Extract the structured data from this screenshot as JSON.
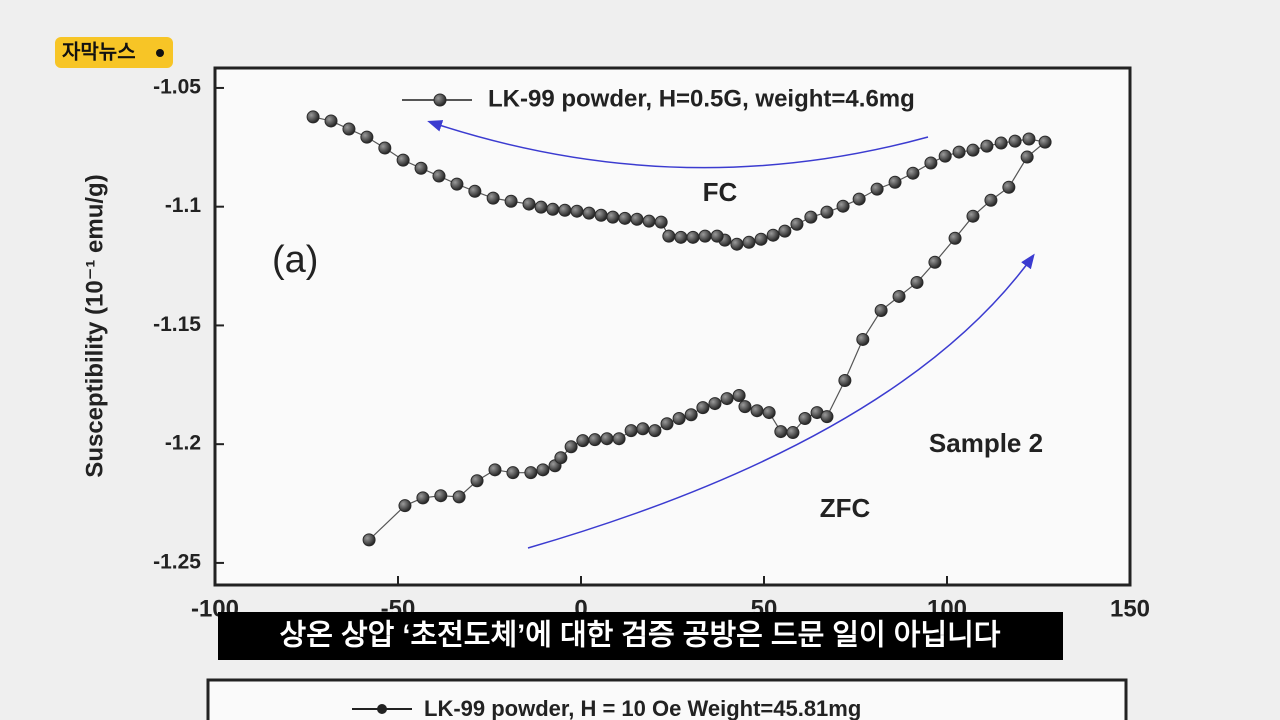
{
  "badge": "자막뉴스",
  "caption": "상온 상압 ‘초전도체’에 대한 검증 공방은 드문 일이 아닙니다",
  "next_chart_legend": "LK-99 powder, H = 10 Oe  Weight=45.81mg",
  "chart_data": {
    "type": "line",
    "y_label": "Susceptibility (10⁻¹ emu/g)",
    "annotations": [
      "(a)",
      "FC",
      "ZFC",
      "Sample 2"
    ],
    "xlim": [
      -100,
      150
    ],
    "xticks": [
      -100,
      -50,
      0,
      50,
      100,
      150
    ],
    "ylim": [
      -1.2593,
      -1.0416
    ],
    "yticks": [
      -1.25,
      -1.2,
      -1.15,
      -1.1,
      -1.05
    ],
    "legend": "top",
    "x": [
      -57.9,
      -48.1,
      -43.2,
      -38.3,
      -33.3,
      -28.4,
      -23.5,
      -18.6,
      -13.7,
      -10.4,
      -7.1,
      -5.5,
      -2.7,
      0.5,
      3.8,
      7.1,
      10.4,
      13.7,
      16.9,
      20.2,
      23.5,
      26.8,
      30.1,
      33.3,
      36.6,
      39.9,
      43.2,
      44.8,
      48.1,
      51.4,
      54.6,
      57.9,
      61.2,
      64.5,
      67.2,
      72.1,
      77.0,
      82.0,
      86.9,
      91.8,
      96.7,
      102.2,
      107.1,
      112.0,
      116.9,
      121.9,
      126.8,
      122.4,
      118.6,
      114.8,
      110.9,
      107.1,
      103.3,
      99.5,
      95.6,
      90.7,
      85.8,
      80.9,
      76.0,
      71.6,
      67.2,
      62.8,
      59.0,
      55.7,
      52.5,
      49.2,
      45.9,
      42.6,
      39.3,
      37.2,
      33.9,
      30.6,
      27.3,
      24.0,
      21.9,
      18.6,
      15.3,
      12.0,
      8.7,
      5.5,
      2.2,
      -1.1,
      -4.4,
      -7.7,
      -10.9,
      -14.2,
      -19.1,
      -24.0,
      -29.0,
      -33.9,
      -38.8,
      -43.7,
      -48.6,
      -53.6,
      -58.5,
      -63.4,
      -68.3,
      -73.2
    ],
    "series": [
      {
        "name": "LK-99 powder, H=0.5G, weight=4.6mg",
        "color": "#2a2a2a",
        "values": [
          -1.2403,
          -1.2259,
          -1.2226,
          -1.2217,
          -1.2222,
          -1.2154,
          -1.2108,
          -1.212,
          -1.212,
          -1.2108,
          -1.2091,
          -1.2057,
          -1.2011,
          -1.1985,
          -1.1981,
          -1.1977,
          -1.1977,
          -1.1943,
          -1.1935,
          -1.1943,
          -1.1914,
          -1.1892,
          -1.1876,
          -1.1846,
          -1.1829,
          -1.1808,
          -1.1795,
          -1.1842,
          -1.1859,
          -1.1867,
          -1.1947,
          -1.1951,
          -1.1892,
          -1.1867,
          -1.1884,
          -1.1732,
          -1.1559,
          -1.1437,
          -1.1378,
          -1.1319,
          -1.1234,
          -1.1133,
          -1.104,
          -1.0973,
          -1.0918,
          -1.0791,
          -1.0728,
          -1.0715,
          -1.0724,
          -1.0732,
          -1.0745,
          -1.0762,
          -1.077,
          -1.0787,
          -1.0816,
          -1.0859,
          -1.0897,
          -1.0926,
          -1.0968,
          -1.0998,
          -1.1023,
          -1.1044,
          -1.1074,
          -1.1103,
          -1.112,
          -1.1137,
          -1.115,
          -1.1158,
          -1.1141,
          -1.1124,
          -1.1124,
          -1.1129,
          -1.1129,
          -1.1124,
          -1.1065,
          -1.1061,
          -1.1053,
          -1.1049,
          -1.1044,
          -1.1036,
          -1.1027,
          -1.1019,
          -1.1015,
          -1.1011,
          -1.1002,
          -1.0989,
          -1.0977,
          -1.0964,
          -1.0935,
          -1.0905,
          -1.0871,
          -1.0838,
          -1.0804,
          -1.0753,
          -1.0707,
          -1.0673,
          -1.0639,
          -1.0622
        ]
      }
    ]
  }
}
